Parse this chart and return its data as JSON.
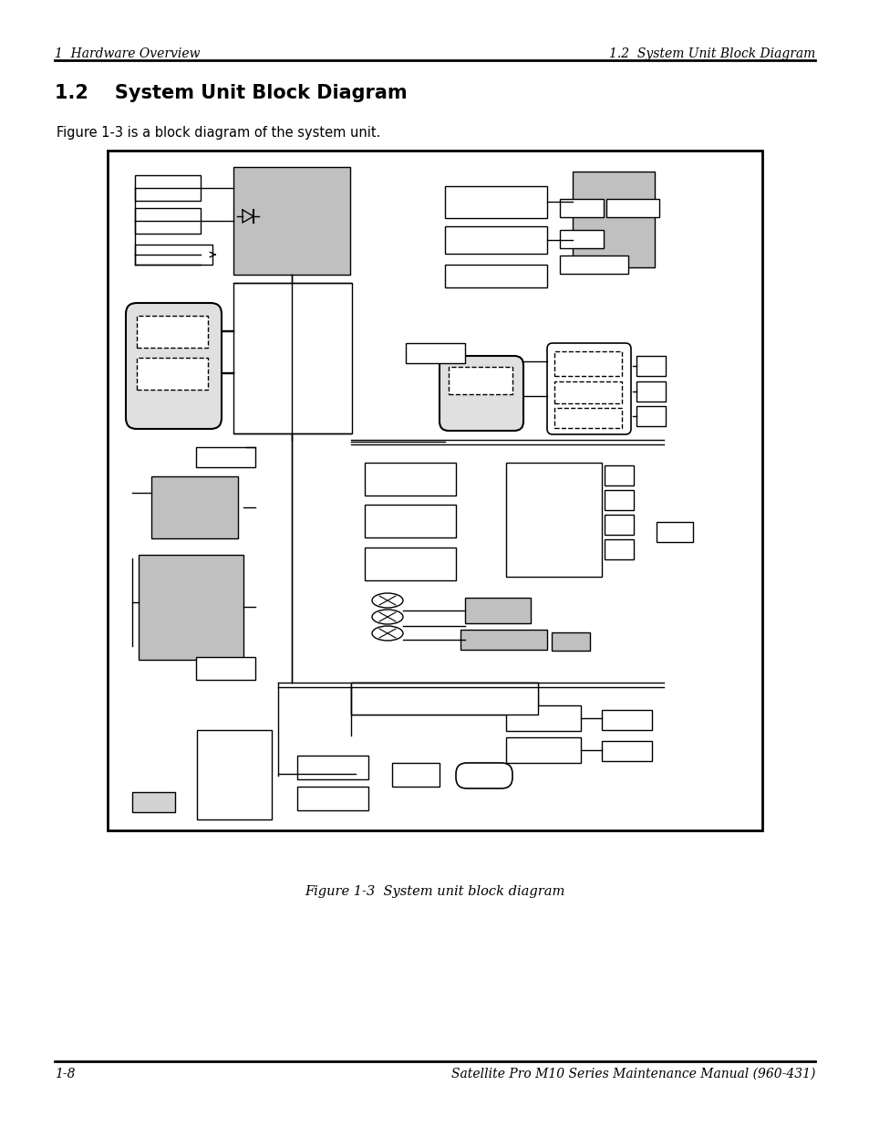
{
  "page_title_left": "1  Hardware Overview",
  "page_title_right": "1.2  System Unit Block Diagram",
  "section_title": "1.2    System Unit Block Diagram",
  "caption_text": "Figure 1-3 is a block diagram of the system unit.",
  "figure_caption": "Figure 1-3  System unit block diagram",
  "footer_left": "1-8",
  "footer_right": "Satellite Pro M10 Series Maintenance Manual (960-431)",
  "bg_color": "#ffffff",
  "gray_fill": "#c0c0c0",
  "light_gray": "#d3d3d3",
  "black": "#000000"
}
